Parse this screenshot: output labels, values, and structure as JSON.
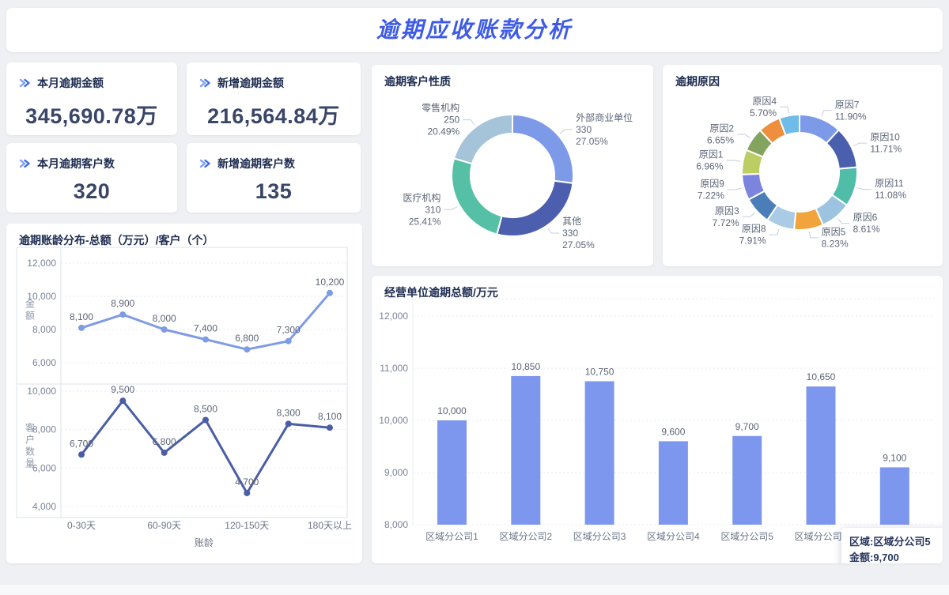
{
  "page_title": "逾期应收账款分析",
  "theme": {
    "accent_blue": "#3D5BE8",
    "page_bg": "#EFF0F3",
    "card_bg": "#FFFFFF",
    "title_text": "#1D2B50",
    "value_text": "#3A4668",
    "muted_text": "#6B7588"
  },
  "kpis": [
    {
      "label": "本月逾期金额",
      "value": "345,690.78万",
      "icon": "double-chevron-right"
    },
    {
      "label": "新增逾期金额",
      "value": "216,564.84万",
      "icon": "double-chevron-right"
    },
    {
      "label": "本月逾期客户数",
      "value": "320",
      "icon": "double-chevron-right"
    },
    {
      "label": "新增逾期客户数",
      "value": "135",
      "icon": "double-chevron-right"
    }
  ],
  "chart_data": [
    {
      "type": "line",
      "title": "逾期账龄分布-总额（万元）/客户（个）",
      "xlabel": "账龄",
      "x_tick_labels": [
        "0-30天",
        "60-90天",
        "120-150天",
        "180天以上"
      ],
      "x_tick_point_indices": [
        0,
        2,
        4,
        6
      ],
      "num_points": 7,
      "grid": "dotted",
      "panels": [
        {
          "name": "金额",
          "color": "#7E9BE6",
          "values": [
            8100,
            8900,
            8000,
            7400,
            6800,
            7300,
            10200
          ],
          "yticks": [
            12000,
            10000,
            8000,
            6000
          ]
        },
        {
          "name": "客户数量",
          "color": "#4A5DA6",
          "values": [
            6700,
            9500,
            6800,
            8500,
            4700,
            8300,
            8100
          ],
          "yticks": [
            10000,
            8000,
            6000,
            4000
          ]
        }
      ]
    },
    {
      "type": "pie",
      "title": "逾期客户性质",
      "donut": true,
      "label_format": "name / value / percent",
      "slices": [
        {
          "name": "外部商业单位",
          "value": 330,
          "percent": 27.05,
          "color": "#7D9AE8"
        },
        {
          "name": "其他",
          "value": 330,
          "percent": 27.05,
          "color": "#4C5FAE"
        },
        {
          "name": "医疗机构",
          "value": 310,
          "percent": 25.41,
          "color": "#56C0A6"
        },
        {
          "name": "零售机构",
          "value": 250,
          "percent": 20.49,
          "color": "#A5C4DA"
        }
      ]
    },
    {
      "type": "pie",
      "title": "逾期原因",
      "donut": true,
      "label_format": "name / percent",
      "slices": [
        {
          "name": "原因7",
          "percent": 11.9,
          "color": "#7D9AE8"
        },
        {
          "name": "原因10",
          "percent": 11.71,
          "color": "#4A5FAE"
        },
        {
          "name": "原因11",
          "percent": 11.08,
          "color": "#4FBDA8"
        },
        {
          "name": "原因6",
          "percent": 8.61,
          "color": "#9CC3DF"
        },
        {
          "name": "原因5",
          "percent": 8.23,
          "color": "#F2A43C"
        },
        {
          "name": "原因8",
          "percent": 7.91,
          "color": "#A9CBE5"
        },
        {
          "name": "原因3",
          "percent": 7.72,
          "color": "#4B7EB8"
        },
        {
          "name": "原因9",
          "percent": 7.22,
          "color": "#7B85DE"
        },
        {
          "name": "原因1",
          "percent": 6.96,
          "color": "#BCCE63"
        },
        {
          "name": "原因2",
          "percent": 6.65,
          "color": "#83A45F"
        },
        {
          "name": "",
          "percent": 6.31,
          "color": "#EF8F3D"
        },
        {
          "name": "原因4",
          "percent": 5.7,
          "color": "#6FBBEA"
        }
      ]
    },
    {
      "type": "bar",
      "title": "经营单位逾期总额/万元",
      "categories": [
        "区域分公司1",
        "区域分公司2",
        "区域分公司3",
        "区域分公司4",
        "区域分公司5",
        "区域分公司6",
        ""
      ],
      "values": [
        10000,
        10850,
        10750,
        9600,
        9700,
        10650,
        9100
      ],
      "yticks": [
        12000,
        11000,
        10000,
        9000,
        8000
      ],
      "ylim": [
        8000,
        12000
      ],
      "bar_color": "#7D97EE",
      "grid": "dotted",
      "tooltip": {
        "line1": "区域:区域分公司5",
        "line2": "金额:9,700"
      }
    }
  ]
}
